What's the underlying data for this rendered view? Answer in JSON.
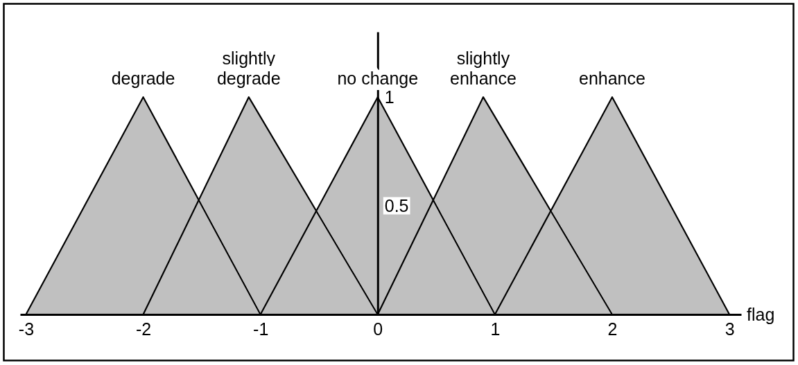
{
  "chart_data": {
    "type": "area",
    "xlabel": "flag",
    "xlim": [
      -3.05,
      3.1
    ],
    "xticks": [
      -3,
      -2,
      -1,
      0,
      1,
      2,
      3
    ],
    "ylim": [
      0,
      1.3
    ],
    "yticks": [
      0.5,
      1
    ],
    "series": [
      {
        "name": "degrade",
        "color": "#c0c0c0",
        "x": [
          -3,
          -2,
          -1
        ],
        "values": [
          0,
          1,
          0
        ]
      },
      {
        "name": "slightly\ndegrade",
        "color": "#c0c0c0",
        "x": [
          -2,
          -1.1,
          0
        ],
        "values": [
          0,
          1,
          0
        ]
      },
      {
        "name": "no change",
        "color": "#c0c0c0",
        "x": [
          -1,
          0,
          1
        ],
        "values": [
          0,
          1,
          0
        ]
      },
      {
        "name": "slightly\nenhance",
        "color": "#c0c0c0",
        "x": [
          0,
          0.9,
          2
        ],
        "values": [
          0,
          1,
          0
        ]
      },
      {
        "name": "enhance",
        "color": "#c0c0c0",
        "x": [
          1,
          2,
          3
        ],
        "values": [
          0,
          1,
          0
        ]
      }
    ]
  }
}
